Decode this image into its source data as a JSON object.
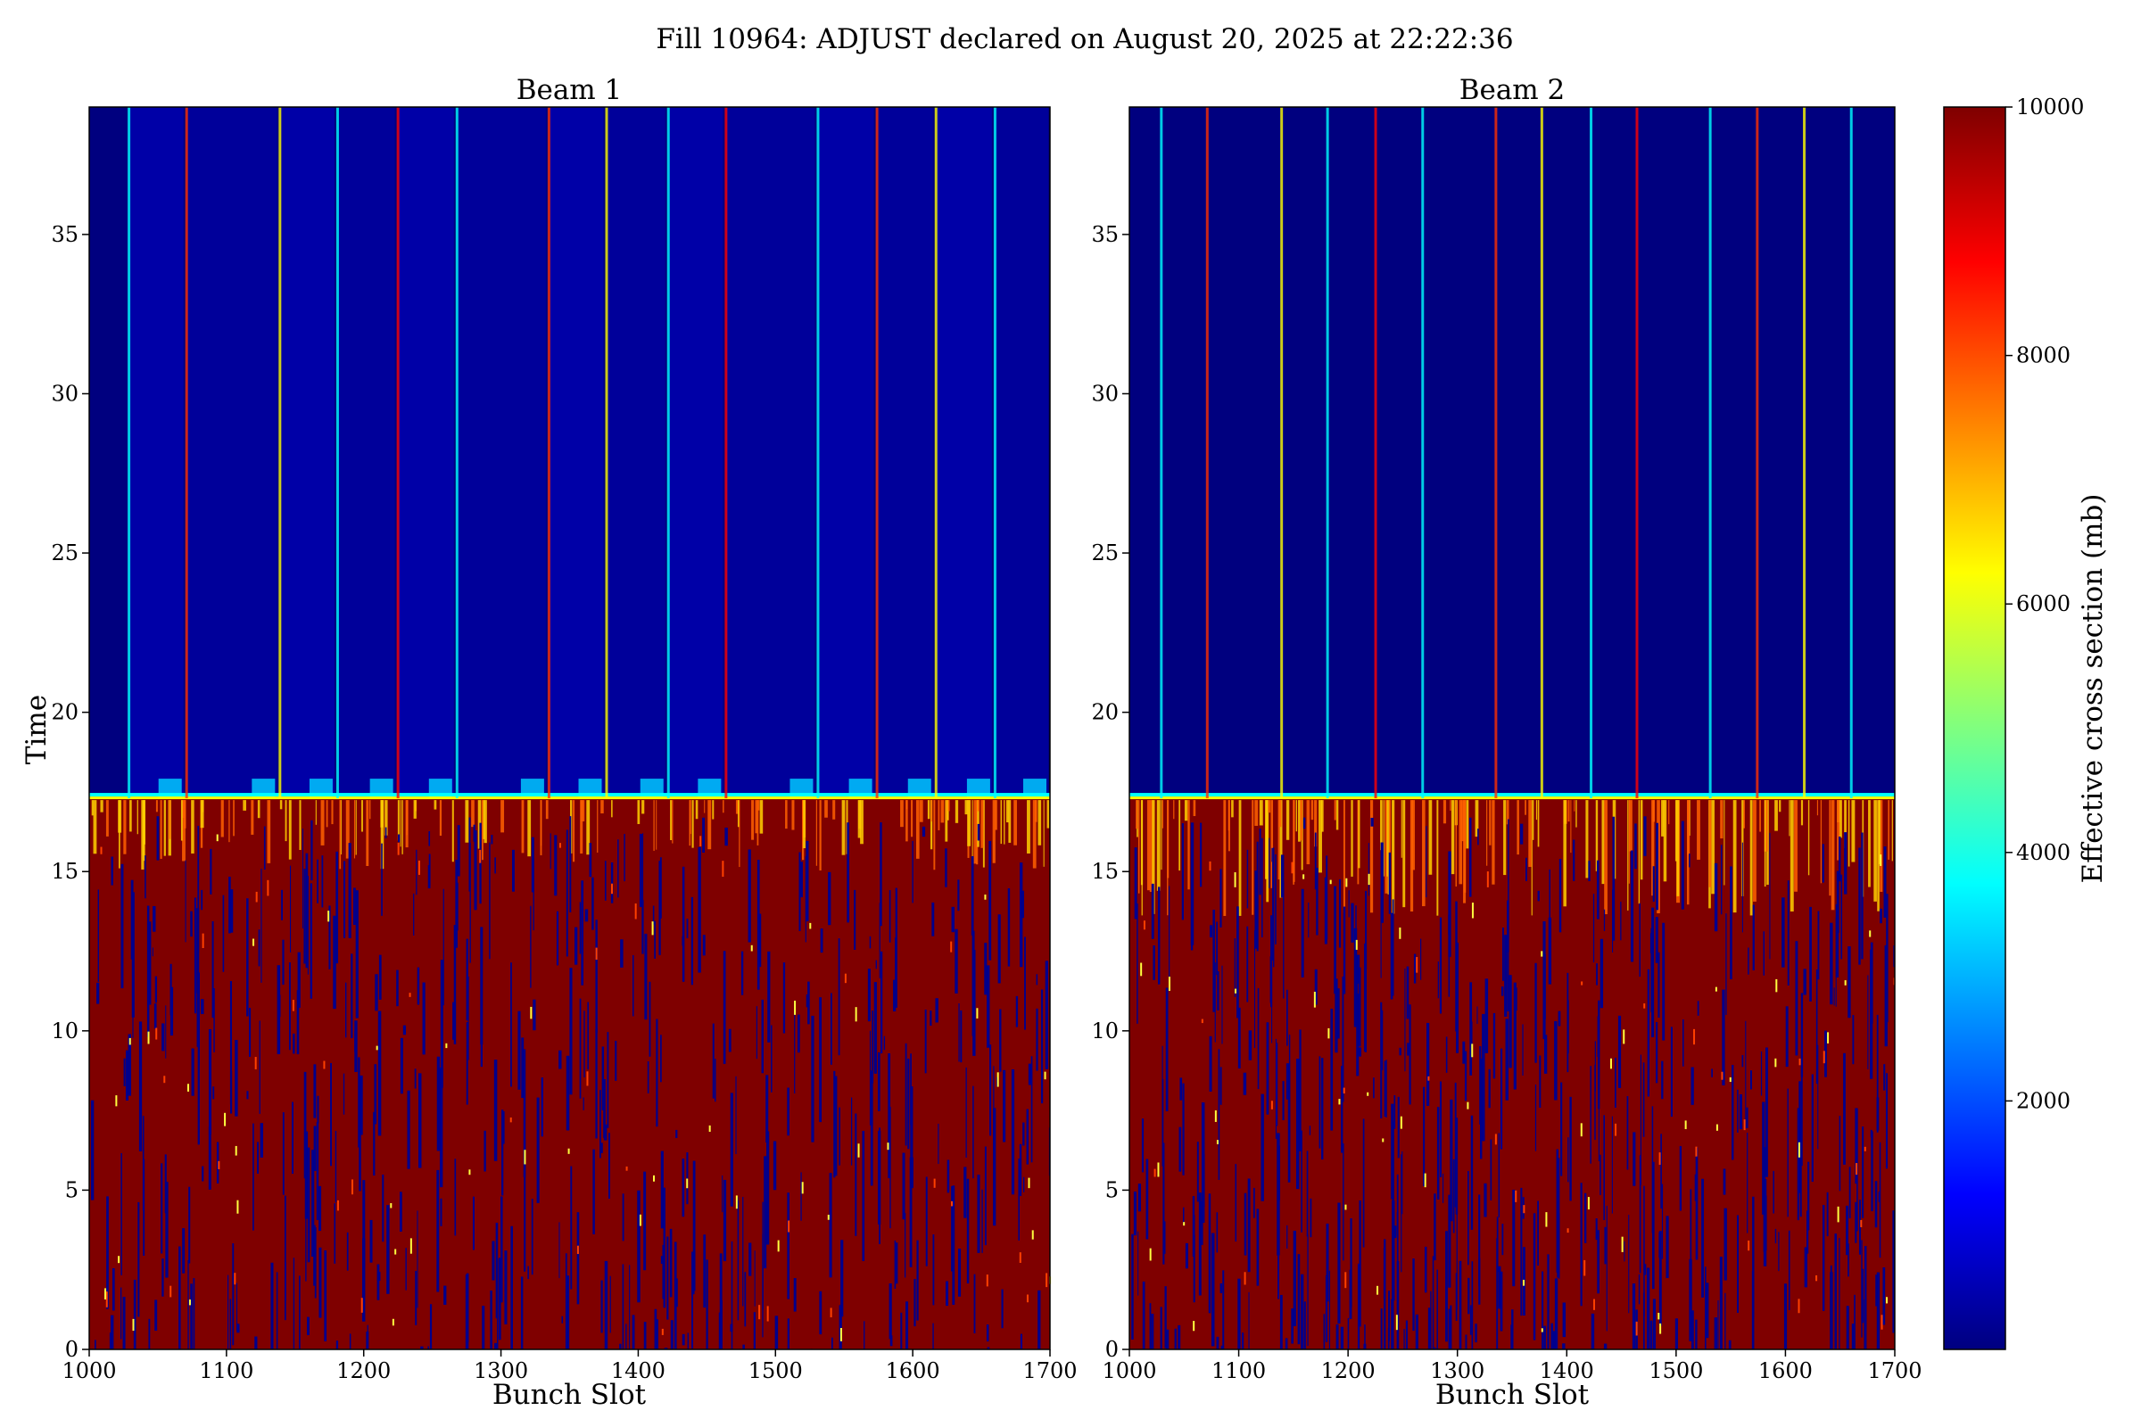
{
  "chart_data": {
    "type": "heatmap",
    "title": "Fill 10964: ADJUST declared on August 20, 2025 at 22:22:36",
    "colormap": "jet",
    "shared_ylabel": "Time",
    "colorbar": {
      "label": "Effective cross section (mb)",
      "range": [
        0,
        10000
      ],
      "ticks": [
        "2000",
        "4000",
        "6000",
        "8000",
        "10000"
      ]
    },
    "panels": [
      {
        "title": "Beam 1",
        "xlabel": "Bunch Slot",
        "xlim": [
          1000,
          1700
        ],
        "ylim": [
          0,
          39
        ],
        "xticks": [
          "1000",
          "1100",
          "1200",
          "1300",
          "1400",
          "1500",
          "1600",
          "1700"
        ],
        "yticks": [
          "0",
          "5",
          "10",
          "15",
          "20",
          "25",
          "30",
          "35"
        ],
        "transition_time": 17.3,
        "train_starts": [
          1028,
          1070,
          1138,
          1180,
          1224,
          1267,
          1334,
          1376,
          1421,
          1463,
          1530,
          1573,
          1616,
          1659
        ]
      },
      {
        "title": "Beam 2",
        "xlabel": "Bunch Slot",
        "xlim": [
          1000,
          1700
        ],
        "ylim": [
          0,
          39
        ],
        "xticks": [
          "1000",
          "1100",
          "1200",
          "1300",
          "1400",
          "1500",
          "1600",
          "1700"
        ],
        "yticks": [
          "0",
          "5",
          "10",
          "15",
          "20",
          "25",
          "30",
          "35"
        ],
        "transition_time": 17.3,
        "train_starts": [
          1028,
          1070,
          1138,
          1180,
          1224,
          1267,
          1334,
          1376,
          1421,
          1463,
          1530,
          1573,
          1616,
          1659
        ]
      }
    ]
  }
}
